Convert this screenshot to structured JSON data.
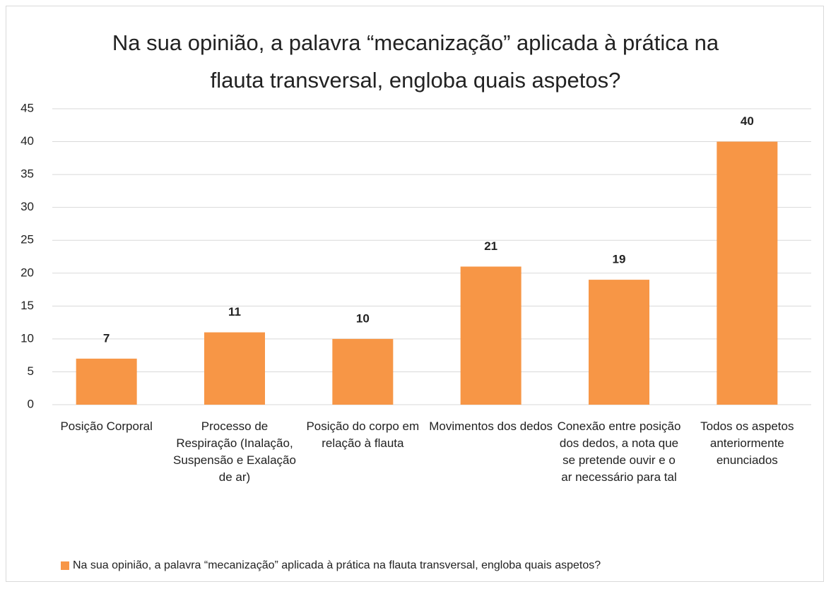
{
  "chart_data": {
    "type": "bar",
    "title": "Na sua opinião, a palavra “mecanização” aplicada à prática na flauta transversal, engloba quais aspetos?",
    "categories": [
      "Posição Corporal",
      "Processo de Respiração (Inalação, Suspensão e Exalação de ar)",
      "Posição do corpo em relação à flauta",
      "Movimentos dos dedos",
      "Conexão entre posição dos dedos, a nota que se pretende ouvir e o ar necessário para tal",
      "Todos os aspetos anteriormente enunciados"
    ],
    "series": [
      {
        "name": "Na sua opinião, a palavra “mecanização” aplicada à prática na flauta transversal, engloba quais aspetos?",
        "color": "#f79646",
        "values": [
          7,
          11,
          10,
          21,
          19,
          40
        ]
      }
    ],
    "ylim": [
      0,
      45
    ],
    "yticks": [
      0,
      5,
      10,
      15,
      20,
      25,
      30,
      35,
      40,
      45
    ],
    "grid": true,
    "legend": "bottom"
  }
}
